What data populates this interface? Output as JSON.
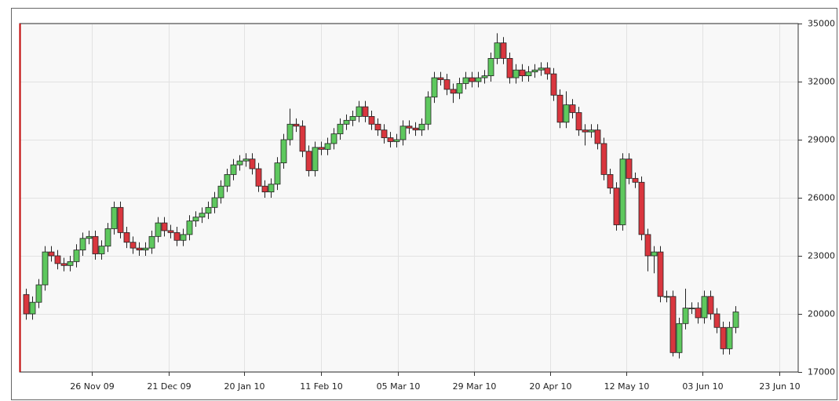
{
  "chart_data": {
    "type": "candlestick",
    "up_color": "#5ec85e",
    "down_color": "#d9363e",
    "grid": true,
    "xlim": [
      -1,
      123
    ],
    "xticks": [
      {
        "value": 10.5,
        "label": "26 Nov 09"
      },
      {
        "value": 22.7,
        "label": "21 Dec 09"
      },
      {
        "value": 34.8,
        "label": "20 Jan 10"
      },
      {
        "value": 47,
        "label": "11 Feb 10"
      },
      {
        "value": 59.2,
        "label": "05 Mar 10"
      },
      {
        "value": 71.4,
        "label": "29 Mar 10"
      },
      {
        "value": 83.5,
        "label": "20 Apr 10"
      },
      {
        "value": 95.6,
        "label": "12 May 10"
      },
      {
        "value": 107.8,
        "label": "03 Jun 10"
      },
      {
        "value": 120,
        "label": "23 Jun 10"
      }
    ],
    "ylim": [
      17000,
      35000
    ],
    "yticks": [
      17000,
      20000,
      23000,
      26000,
      29000,
      32000,
      35000
    ],
    "open": [
      21000,
      20000,
      20600,
      21500,
      23200,
      23000,
      22600,
      22500,
      22700,
      23300,
      23900,
      24000,
      23100,
      23500,
      24400,
      25500,
      24200,
      23700,
      23400,
      23300,
      23400,
      24000,
      24700,
      24300,
      24200,
      23800,
      24100,
      24800,
      25000,
      25200,
      25500,
      26000,
      26600,
      27200,
      27700,
      27900,
      28000,
      27500,
      26600,
      26300,
      26700,
      27800,
      29000,
      29800,
      29700,
      28400,
      27400,
      28600,
      28500,
      28800,
      29300,
      29800,
      30000,
      30200,
      30700,
      30200,
      29800,
      29500,
      29100,
      28900,
      29000,
      29700,
      29600,
      29500,
      29800,
      31200,
      32200,
      32100,
      31600,
      31400,
      31900,
      32200,
      32000,
      32200,
      32300,
      33200,
      34000,
      33200,
      32200,
      32600,
      32300,
      32500,
      32600,
      32700,
      32400,
      31300,
      29900,
      30800,
      30400,
      29500,
      29400,
      29500,
      28800,
      27200,
      26500,
      24600,
      28000,
      27000,
      26800,
      24100,
      23000,
      23200,
      20900,
      20900,
      18000,
      19500,
      20300,
      20300,
      19800,
      20900,
      20000,
      19300,
      18200,
      19300
    ],
    "high": [
      21300,
      20900,
      21800,
      23500,
      23500,
      23300,
      22900,
      23000,
      23600,
      24200,
      24300,
      24300,
      23800,
      24700,
      25800,
      25800,
      24500,
      24000,
      23700,
      23700,
      24300,
      25000,
      25000,
      24600,
      24500,
      24400,
      25100,
      25300,
      25500,
      25800,
      26300,
      26900,
      27500,
      28000,
      28200,
      28300,
      28300,
      27800,
      26900,
      27000,
      28100,
      29300,
      30600,
      30100,
      30000,
      28700,
      28900,
      28900,
      29100,
      29600,
      30100,
      30300,
      30500,
      31000,
      31000,
      30500,
      30100,
      29800,
      29400,
      29300,
      30000,
      30000,
      29900,
      30100,
      31500,
      32500,
      32500,
      32400,
      31900,
      32200,
      32500,
      32500,
      32500,
      32600,
      33500,
      34500,
      34300,
      33500,
      32900,
      32900,
      32800,
      32900,
      33000,
      33000,
      32700,
      31600,
      31500,
      31100,
      30700,
      29800,
      29800,
      29800,
      29100,
      27500,
      26800,
      28300,
      28300,
      27300,
      27100,
      24400,
      23500,
      23500,
      21200,
      21200,
      19800,
      21300,
      20600,
      20600,
      21200,
      21200,
      20300,
      19600,
      19600,
      20400
    ],
    "low": [
      19700,
      19700,
      20300,
      21200,
      22700,
      22300,
      22200,
      22200,
      22400,
      23000,
      23600,
      22800,
      22800,
      23200,
      24100,
      23900,
      23400,
      23100,
      23000,
      23000,
      23100,
      23700,
      24000,
      23900,
      23500,
      23500,
      23800,
      24500,
      24700,
      24900,
      25200,
      25700,
      26300,
      26900,
      27400,
      27600,
      27200,
      26300,
      26000,
      26000,
      26400,
      27500,
      28700,
      29400,
      28100,
      27100,
      27100,
      28200,
      28200,
      28500,
      29000,
      29500,
      29700,
      29900,
      29900,
      29500,
      29200,
      28800,
      28600,
      28600,
      28700,
      29300,
      29200,
      29200,
      29500,
      30900,
      31800,
      31300,
      30900,
      31100,
      31600,
      31700,
      31700,
      31900,
      32000,
      32900,
      32900,
      31900,
      31900,
      32000,
      32000,
      32200,
      32300,
      32100,
      31000,
      29600,
      29600,
      30100,
      29200,
      28700,
      29100,
      28500,
      26900,
      26200,
      24300,
      24300,
      26700,
      26500,
      23800,
      22200,
      22100,
      20600,
      20600,
      17800,
      17700,
      19200,
      20000,
      19500,
      19500,
      19700,
      19000,
      17900,
      17900,
      19000
    ],
    "close": [
      20000,
      20600,
      21500,
      23200,
      23000,
      22600,
      22500,
      22700,
      23300,
      23900,
      24000,
      23100,
      23500,
      24400,
      25500,
      24200,
      23700,
      23400,
      23300,
      23400,
      24000,
      24700,
      24300,
      24200,
      23800,
      24100,
      24800,
      25000,
      25200,
      25500,
      26000,
      26600,
      27200,
      27700,
      27900,
      28000,
      27500,
      26600,
      26300,
      26700,
      27800,
      29000,
      29800,
      29700,
      28400,
      27400,
      28600,
      28500,
      28800,
      29300,
      29800,
      30000,
      30200,
      30700,
      30200,
      29800,
      29500,
      29100,
      28900,
      29000,
      29700,
      29600,
      29500,
      29800,
      31200,
      32200,
      32100,
      31600,
      31400,
      31900,
      32200,
      32000,
      32200,
      32300,
      33200,
      34000,
      33200,
      32200,
      32600,
      32300,
      32500,
      32600,
      32700,
      32400,
      31300,
      29900,
      30800,
      30400,
      29500,
      29400,
      29500,
      28800,
      27200,
      26500,
      24600,
      28000,
      27000,
      26800,
      24100,
      23000,
      23200,
      20900,
      20900,
      18000,
      19500,
      20300,
      20300,
      19800,
      20900,
      20000,
      19300,
      18200,
      19300,
      20100
    ]
  }
}
